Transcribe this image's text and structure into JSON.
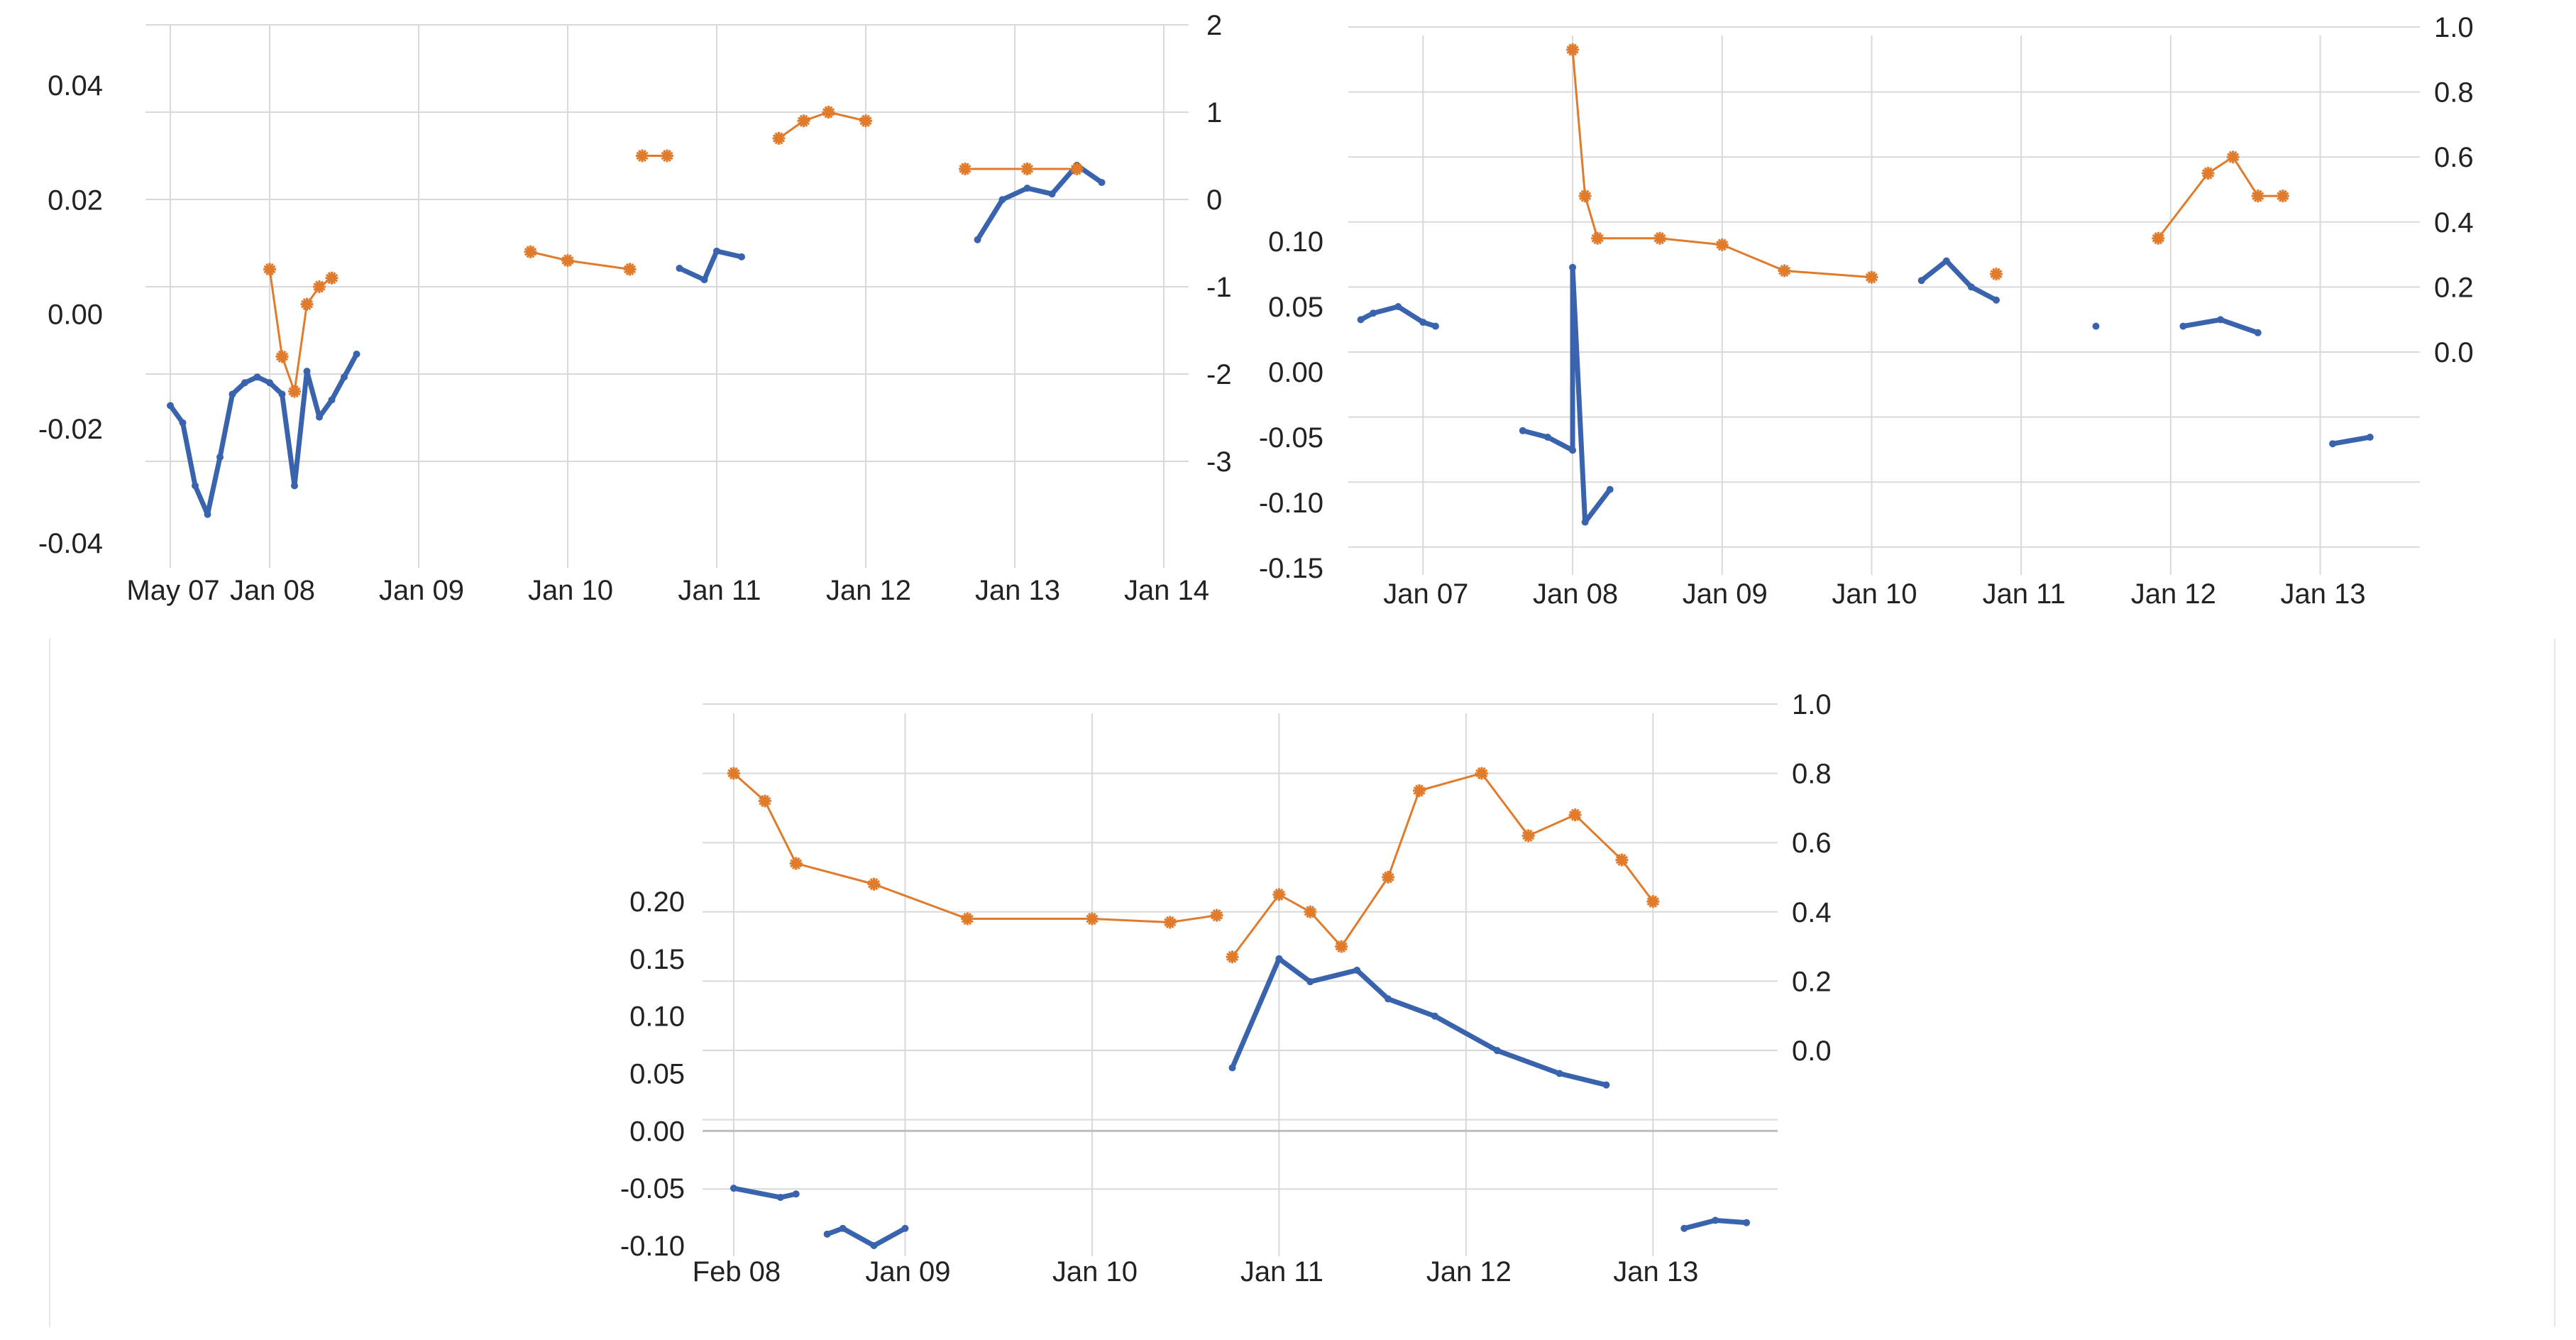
{
  "chart_data": [
    {
      "type": "line",
      "title": "",
      "xlabel": "",
      "ylabel": "",
      "x_tick_labels": [
        "May 07",
        "Jan 08",
        "Jan 09",
        "Jan 10",
        "Jan 11",
        "Jan 12",
        "Jan 13",
        "Jan 14"
      ],
      "y_left": {
        "ticks": [
          "-0.04",
          "-0.02",
          "0.00",
          "0.02",
          "0.04"
        ],
        "range": [
          -0.04,
          0.04
        ]
      },
      "y_right": {
        "ticks": [
          "-3",
          "-2",
          "-1",
          "0",
          "1",
          "2"
        ],
        "range": [
          -3,
          2
        ]
      },
      "grid": true,
      "colors": {
        "series_blue": "#3a63ad",
        "series_orange": "#e07b2c",
        "grid": "#d9d9d9"
      },
      "series": [
        {
          "axis": "left",
          "color": "#3a63ad",
          "marker": "dot",
          "segments": [
            [
              [
                "2007-05",
                -0.016
              ],
              [
                "2007-06",
                -0.019
              ],
              [
                "2007-07",
                -0.03
              ],
              [
                "2007-08",
                -0.035
              ],
              [
                "2007-09",
                -0.025
              ],
              [
                "2007-10",
                -0.014
              ],
              [
                "2007-11",
                -0.012
              ],
              [
                "2007-12",
                -0.011
              ],
              [
                "2008-01",
                -0.012
              ],
              [
                "2008-02",
                -0.014
              ],
              [
                "2008-03",
                -0.03
              ],
              [
                "2008-04",
                -0.01
              ],
              [
                "2008-05",
                -0.018
              ],
              [
                "2008-06",
                -0.015
              ],
              [
                "2008-07",
                -0.011
              ],
              [
                "2008-08",
                -0.007
              ]
            ],
            [
              [
                "2010-10",
                0.008
              ],
              [
                "2010-12",
                0.006
              ],
              [
                "2011-01",
                0.011
              ],
              [
                "2011-03",
                0.01
              ]
            ],
            [
              [
                "2012-10",
                0.013
              ],
              [
                "2012-12",
                0.02
              ],
              [
                "2013-02",
                0.022
              ],
              [
                "2013-04",
                0.021
              ],
              [
                "2013-06",
                0.026
              ],
              [
                "2013-08",
                0.023
              ]
            ]
          ]
        },
        {
          "axis": "right",
          "color": "#e07b2c",
          "marker": "star",
          "segments": [
            [
              [
                "2008-01",
                -0.8
              ],
              [
                "2008-02",
                -1.8
              ],
              [
                "2008-03",
                -2.2
              ],
              [
                "2008-04",
                -1.2
              ],
              [
                "2008-05",
                -1.0
              ],
              [
                "2008-06",
                -0.9
              ]
            ],
            [
              [
                "2009-10",
                -0.6
              ],
              [
                "2010-01",
                -0.7
              ],
              [
                "2010-06",
                -0.8
              ]
            ],
            [
              [
                "2010-07",
                0.5
              ],
              [
                "2010-09",
                0.5
              ]
            ],
            [
              [
                "2011-06",
                0.7
              ],
              [
                "2011-08",
                0.9
              ],
              [
                "2011-10",
                1.0
              ],
              [
                "2012-01",
                0.9
              ]
            ],
            [
              [
                "2012-09",
                0.35
              ],
              [
                "2013-02",
                0.35
              ],
              [
                "2013-06",
                0.35
              ]
            ]
          ]
        }
      ]
    },
    {
      "type": "line",
      "title": "",
      "xlabel": "",
      "ylabel": "",
      "x_tick_labels": [
        "Jan 07",
        "Jan 08",
        "Jan 09",
        "Jan 10",
        "Jan 11",
        "Jan 12",
        "Jan 13"
      ],
      "y_left": {
        "ticks": [
          "-0.15",
          "-0.10",
          "-0.05",
          "0.00",
          "0.05",
          "0.10"
        ],
        "range": [
          -0.15,
          0.1
        ]
      },
      "y_right": {
        "ticks": [
          "0.0",
          "0.2",
          "0.4",
          "0.6",
          "0.8",
          "1.0"
        ],
        "range": [
          0.0,
          1.0
        ]
      },
      "grid": true,
      "colors": {
        "series_blue": "#3a63ad",
        "series_orange": "#e07b2c",
        "grid": "#d9d9d9"
      },
      "series": [
        {
          "axis": "left",
          "color": "#3a63ad",
          "marker": "dot",
          "segments": [
            [
              [
                "2006-08",
                0.04
              ],
              [
                "2006-09",
                0.045
              ],
              [
                "2006-11",
                0.05
              ],
              [
                "2007-01",
                0.038
              ],
              [
                "2007-02",
                0.035
              ]
            ],
            [
              [
                "2007-09",
                -0.045
              ],
              [
                "2007-11",
                -0.05
              ],
              [
                "2008-01",
                -0.06
              ],
              [
                "2008-01",
                0.08
              ],
              [
                "2008-02",
                -0.115
              ],
              [
                "2008-04",
                -0.09
              ]
            ],
            [
              [
                "2010-05",
                0.07
              ],
              [
                "2010-07",
                0.085
              ],
              [
                "2010-09",
                0.065
              ],
              [
                "2010-11",
                0.055
              ]
            ],
            [
              [
                "2011-07",
                0.035
              ]
            ],
            [
              [
                "2012-02",
                0.035
              ],
              [
                "2012-05",
                0.04
              ],
              [
                "2012-08",
                0.03
              ]
            ],
            [
              [
                "2013-02",
                -0.055
              ],
              [
                "2013-05",
                -0.05
              ]
            ]
          ]
        },
        {
          "axis": "right",
          "color": "#e07b2c",
          "marker": "star",
          "segments": [
            [
              [
                "2008-01",
                0.93
              ],
              [
                "2008-02",
                0.48
              ],
              [
                "2008-03",
                0.35
              ],
              [
                "2008-08",
                0.35
              ],
              [
                "2009-01",
                0.33
              ],
              [
                "2009-06",
                0.25
              ],
              [
                "2010-01",
                0.23
              ]
            ],
            [
              [
                "2010-11",
                0.24
              ]
            ],
            [
              [
                "2011-12",
                0.35
              ],
              [
                "2012-04",
                0.55
              ],
              [
                "2012-06",
                0.6
              ],
              [
                "2012-08",
                0.48
              ],
              [
                "2012-10",
                0.48
              ]
            ]
          ]
        }
      ]
    },
    {
      "type": "line",
      "title": "",
      "xlabel": "",
      "ylabel": "",
      "x_tick_labels": [
        "Feb 08",
        "Jan 09",
        "Jan 10",
        "Jan 11",
        "Jan 12",
        "Jan 13"
      ],
      "y_left": {
        "ticks": [
          "-0.10",
          "-0.05",
          "0.00",
          "0.05",
          "0.10",
          "0.15",
          "0.20"
        ],
        "range": [
          -0.1,
          0.2
        ]
      },
      "y_right": {
        "ticks": [
          "0.0",
          "0.2",
          "0.4",
          "0.6",
          "0.8",
          "1.0"
        ],
        "range": [
          0.0,
          1.0
        ]
      },
      "grid": true,
      "colors": {
        "series_blue": "#3a63ad",
        "series_orange": "#e07b2c",
        "grid": "#d9d9d9",
        "zero_line": "#bfbfbf"
      },
      "series": [
        {
          "axis": "left",
          "color": "#3a63ad",
          "marker": "dot",
          "segments": [
            [
              [
                "2008-02",
                -0.05
              ],
              [
                "2008-05",
                -0.058
              ],
              [
                "2008-06",
                -0.055
              ]
            ],
            [
              [
                "2008-08",
                -0.09
              ],
              [
                "2008-09",
                -0.085
              ],
              [
                "2008-11",
                -0.1
              ],
              [
                "2009-01",
                -0.085
              ]
            ],
            [
              [
                "2010-10",
                0.055
              ],
              [
                "2011-01",
                0.15
              ],
              [
                "2011-03",
                0.13
              ],
              [
                "2011-06",
                0.14
              ],
              [
                "2011-08",
                0.115
              ],
              [
                "2011-11",
                0.1
              ],
              [
                "2012-03",
                0.07
              ],
              [
                "2012-07",
                0.05
              ],
              [
                "2012-10",
                0.04
              ]
            ],
            [
              [
                "2013-03",
                -0.085
              ],
              [
                "2013-05",
                -0.078
              ],
              [
                "2013-07",
                -0.08
              ]
            ]
          ]
        },
        {
          "axis": "right",
          "color": "#e07b2c",
          "marker": "star",
          "segments": [
            [
              [
                "2008-02",
                0.8
              ],
              [
                "2008-04",
                0.72
              ],
              [
                "2008-06",
                0.54
              ],
              [
                "2008-11",
                0.48
              ],
              [
                "2009-05",
                0.38
              ],
              [
                "2010-01",
                0.38
              ],
              [
                "2010-06",
                0.37
              ],
              [
                "2010-09",
                0.39
              ]
            ],
            [
              [
                "2010-10",
                0.27
              ],
              [
                "2011-01",
                0.45
              ],
              [
                "2011-03",
                0.4
              ],
              [
                "2011-05",
                0.3
              ],
              [
                "2011-08",
                0.5
              ],
              [
                "2011-10",
                0.75
              ],
              [
                "2012-02",
                0.8
              ],
              [
                "2012-05",
                0.62
              ],
              [
                "2012-08",
                0.68
              ],
              [
                "2012-11",
                0.55
              ],
              [
                "2013-01",
                0.43
              ]
            ]
          ]
        }
      ]
    }
  ]
}
